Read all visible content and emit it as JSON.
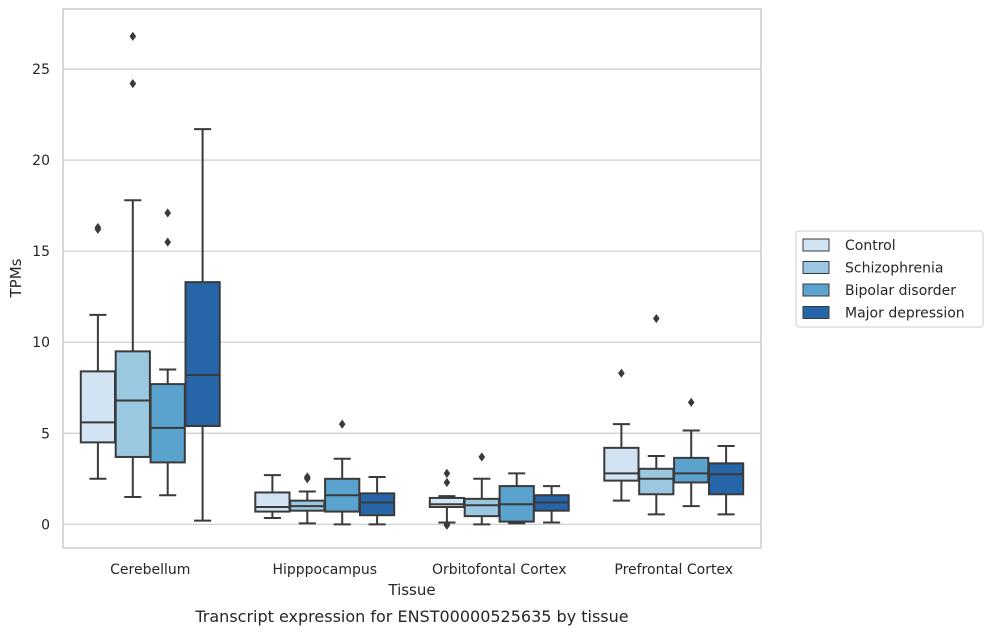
{
  "caption": "Transcript expression for ENST00000525635 by tissue",
  "chart_data": {
    "type": "box",
    "title": "",
    "xlabel": "Tissue",
    "ylabel": "TPMs",
    "ylim": [
      -1.3,
      28.3
    ],
    "yticks": [
      0,
      5,
      10,
      15,
      20,
      25
    ],
    "grid": "horizontal",
    "legend_position": "right",
    "categories": [
      "Cerebellum",
      "Hipppocampus",
      "Orbitofontal Cortex",
      "Prefrontal Cortex"
    ],
    "series": [
      {
        "name": "Control",
        "color": "#d2e3f3",
        "boxes": [
          {
            "whislo": 2.5,
            "q1": 4.5,
            "med": 5.6,
            "q3": 8.4,
            "whishi": 11.5,
            "fliers": [
              16.2,
              16.3
            ]
          },
          {
            "whislo": 0.35,
            "q1": 0.7,
            "med": 0.95,
            "q3": 1.75,
            "whishi": 2.7,
            "fliers": []
          },
          {
            "whislo": 0.1,
            "q1": 0.95,
            "med": 1.1,
            "q3": 1.45,
            "whishi": 1.55,
            "fliers": [
              2.3,
              2.8,
              0.0,
              -0.05
            ]
          },
          {
            "whislo": 1.3,
            "q1": 2.4,
            "med": 2.8,
            "q3": 4.2,
            "whishi": 5.5,
            "fliers": [
              8.3
            ]
          }
        ]
      },
      {
        "name": "Schizophrenia",
        "color": "#9ac8e0",
        "boxes": [
          {
            "whislo": 1.5,
            "q1": 3.7,
            "med": 6.8,
            "q3": 9.5,
            "whishi": 17.8,
            "fliers": [
              24.2,
              26.8
            ]
          },
          {
            "whislo": 0.05,
            "q1": 0.75,
            "med": 1.0,
            "q3": 1.3,
            "whishi": 1.8,
            "fliers": [
              2.5,
              2.6
            ]
          },
          {
            "whislo": 0.0,
            "q1": 0.45,
            "med": 1.05,
            "q3": 1.4,
            "whishi": 2.5,
            "fliers": [
              3.7
            ]
          },
          {
            "whislo": 0.55,
            "q1": 1.65,
            "med": 2.5,
            "q3": 3.05,
            "whishi": 3.75,
            "fliers": [
              11.3
            ]
          }
        ]
      },
      {
        "name": "Bipolar disorder",
        "color": "#5ba3cf",
        "boxes": [
          {
            "whislo": 1.6,
            "q1": 3.4,
            "med": 5.3,
            "q3": 7.7,
            "whishi": 8.5,
            "fliers": [
              15.5,
              17.1
            ]
          },
          {
            "whislo": 0.0,
            "q1": 0.7,
            "med": 1.6,
            "q3": 2.5,
            "whishi": 3.6,
            "fliers": [
              5.5
            ]
          },
          {
            "whislo": 0.05,
            "q1": 0.15,
            "med": 1.1,
            "q3": 2.1,
            "whishi": 2.8,
            "fliers": []
          },
          {
            "whislo": 1.0,
            "q1": 2.3,
            "med": 2.8,
            "q3": 3.65,
            "whishi": 5.15,
            "fliers": [
              6.7
            ]
          }
        ]
      },
      {
        "name": "Major depression",
        "color": "#2565a8",
        "boxes": [
          {
            "whislo": 0.2,
            "q1": 5.4,
            "med": 8.2,
            "q3": 13.3,
            "whishi": 21.7,
            "fliers": []
          },
          {
            "whislo": 0.0,
            "q1": 0.5,
            "med": 1.2,
            "q3": 1.7,
            "whishi": 2.6,
            "fliers": []
          },
          {
            "whislo": 0.1,
            "q1": 0.75,
            "med": 1.2,
            "q3": 1.6,
            "whishi": 2.1,
            "fliers": []
          },
          {
            "whislo": 0.55,
            "q1": 1.65,
            "med": 2.75,
            "q3": 3.35,
            "whishi": 4.3,
            "fliers": []
          }
        ]
      }
    ]
  }
}
